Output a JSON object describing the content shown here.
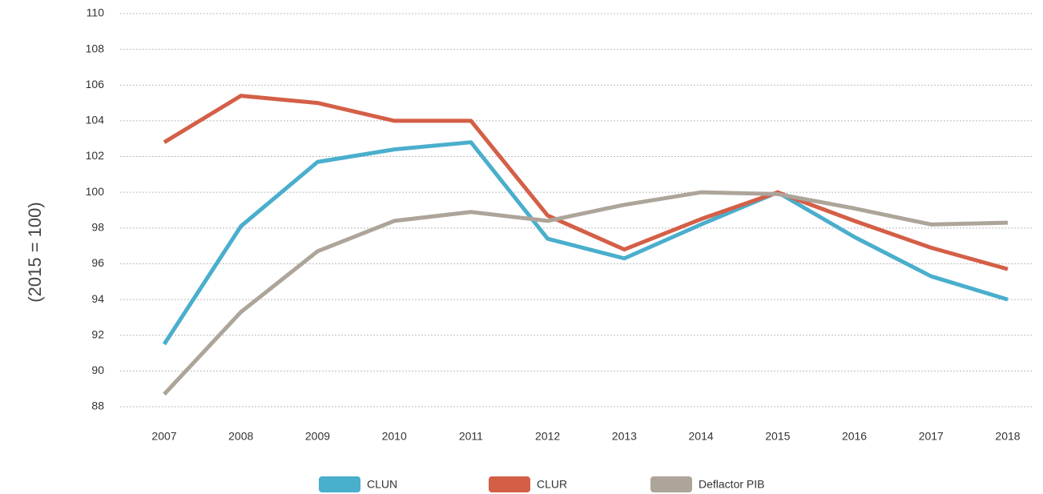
{
  "chart_data": {
    "type": "line",
    "y_label": "(2015 = 100)",
    "categories": [
      "2007",
      "2008",
      "2009",
      "2010",
      "2011",
      "2012",
      "2013",
      "2014",
      "2015",
      "2016",
      "2017",
      "2018"
    ],
    "series": [
      {
        "name": "CLUN",
        "color": "#4aaecd",
        "values": [
          91.5,
          98.1,
          101.7,
          102.4,
          102.8,
          97.4,
          96.3,
          98.2,
          100.0,
          97.5,
          95.3,
          94.0
        ]
      },
      {
        "name": "CLUR",
        "color": "#d45f47",
        "values": [
          102.8,
          105.4,
          105.0,
          104.0,
          104.0,
          98.7,
          96.8,
          98.5,
          100.0,
          98.4,
          96.9,
          95.7
        ]
      },
      {
        "name": "Deflactor PIB",
        "color": "#ada49a",
        "values": [
          88.7,
          93.3,
          96.7,
          98.4,
          98.9,
          98.4,
          99.3,
          100.0,
          99.9,
          99.1,
          98.2,
          98.3
        ]
      }
    ],
    "ylim": [
      88,
      110
    ],
    "yticks": [
      88,
      90,
      92,
      94,
      96,
      98,
      100,
      102,
      104,
      106,
      108,
      110
    ],
    "grid": true,
    "legend": "bottom"
  }
}
